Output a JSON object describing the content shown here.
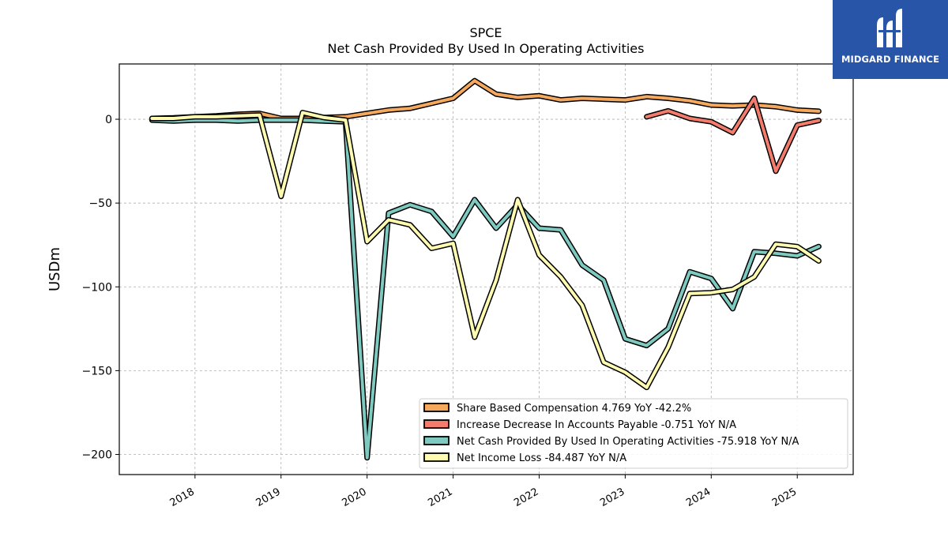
{
  "brand": {
    "name": "MIDGARD FINANCE",
    "bg_color": "#2855a8"
  },
  "chart_data": {
    "type": "line",
    "title": "SPCE",
    "subtitle": "Net Cash Provided By Used In Operating Activities",
    "xlabel": "",
    "ylabel": "USDm",
    "xlim": [
      2017.12,
      2025.65
    ],
    "ylim": [
      -212,
      33
    ],
    "x_ticks": [
      2018,
      2019,
      2020,
      2021,
      2022,
      2023,
      2024,
      2025
    ],
    "x_tick_labels": [
      "2018",
      "2019",
      "2020",
      "2021",
      "2022",
      "2023",
      "2024",
      "2025"
    ],
    "y_ticks": [
      0,
      -50,
      -100,
      -150,
      -200
    ],
    "y_tick_labels": [
      "0",
      "−50",
      "−100",
      "−150",
      "−200"
    ],
    "grid": true,
    "legend_position": "lower-right",
    "series": [
      {
        "name": "Share Based Compensation  4.769 YoY -42.2%",
        "color": "#f5a95e",
        "x": [
          2017.5,
          2017.75,
          2018.0,
          2018.25,
          2018.5,
          2018.75,
          2019.0,
          2019.25,
          2019.5,
          2019.75,
          2020.0,
          2020.25,
          2020.5,
          2020.75,
          2021.0,
          2021.25,
          2021.5,
          2021.75,
          2022.0,
          2022.25,
          2022.5,
          2022.75,
          2023.0,
          2023.25,
          2023.5,
          2023.75,
          2024.0,
          2024.25,
          2024.5,
          2024.75,
          2025.0,
          2025.25
        ],
        "values": [
          0.5,
          0.8,
          1.5,
          2.0,
          3.0,
          3.5,
          0.5,
          0.5,
          1.0,
          1.5,
          3.5,
          5.5,
          6.5,
          9.5,
          12.5,
          23.0,
          15.0,
          13.0,
          14.0,
          11.5,
          12.5,
          12.0,
          11.5,
          13.5,
          12.5,
          11.0,
          8.5,
          8.0,
          8.5,
          7.5,
          5.5,
          4.769
        ]
      },
      {
        "name": "Increase Decrease In Accounts Payable  -0.751 YoY N/A",
        "color": "#f47c6c",
        "x": [
          2023.25,
          2023.5,
          2023.75,
          2024.0,
          2024.25,
          2024.5,
          2024.75,
          2025.0,
          2025.25
        ],
        "values": [
          1.5,
          5.0,
          0.5,
          -1.5,
          -8.0,
          12.5,
          -31.0,
          -3.5,
          -0.751
        ]
      },
      {
        "name": "Net Cash Provided By Used In Operating Activities  -75.918 YoY N/A",
        "color": "#7ecac0",
        "x": [
          2017.5,
          2017.75,
          2018.0,
          2018.25,
          2018.5,
          2018.75,
          2019.0,
          2019.25,
          2019.5,
          2019.75,
          2020.0,
          2020.25,
          2020.5,
          2020.75,
          2021.0,
          2021.25,
          2021.5,
          2021.75,
          2022.0,
          2022.25,
          2022.5,
          2022.75,
          2023.0,
          2023.25,
          2023.5,
          2023.75,
          2024.0,
          2024.25,
          2024.5,
          2024.75,
          2025.0,
          2025.25
        ],
        "values": [
          -0.5,
          -1.0,
          -0.5,
          -0.5,
          -1.0,
          -0.5,
          -0.5,
          -0.5,
          -1.0,
          -1.5,
          -202.0,
          -56.0,
          -51.0,
          -55.0,
          -70.0,
          -48.0,
          -65.0,
          -51.0,
          -65.0,
          -66.0,
          -87.0,
          -96.0,
          -131.0,
          -135.0,
          -125.0,
          -91.0,
          -95.0,
          -113.0,
          -79.0,
          -80.0,
          -81.5,
          -75.918
        ]
      },
      {
        "name": "Net Income Loss  -84.487 YoY N/A",
        "color": "#fffcb1",
        "x": [
          2017.5,
          2017.75,
          2018.0,
          2018.25,
          2018.5,
          2018.75,
          2019.0,
          2019.25,
          2019.5,
          2019.75,
          2020.0,
          2020.25,
          2020.5,
          2020.75,
          2021.0,
          2021.25,
          2021.5,
          2021.75,
          2022.0,
          2022.25,
          2022.5,
          2022.75,
          2023.0,
          2023.25,
          2023.5,
          2023.75,
          2024.0,
          2024.25,
          2024.5,
          2024.75,
          2025.0,
          2025.25
        ],
        "values": [
          0.5,
          0.5,
          1.5,
          1.5,
          2.0,
          2.5,
          -46.0,
          4.0,
          1.0,
          -0.5,
          -73.0,
          -60.0,
          -63.0,
          -77.0,
          -74.0,
          -130.0,
          -96.0,
          -48.0,
          -81.0,
          -94.0,
          -111.0,
          -145.0,
          -151.0,
          -160.0,
          -136.0,
          -104.0,
          -103.5,
          -101.5,
          -94.0,
          -74.5,
          -76.0,
          -84.487
        ]
      }
    ]
  }
}
